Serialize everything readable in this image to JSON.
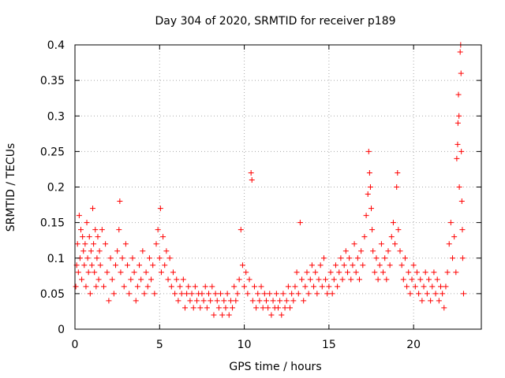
{
  "chart_data": {
    "type": "scatter",
    "title": "Day 304 of 2020, SRMTID for receiver p189",
    "xlabel": "GPS time / hours",
    "ylabel": "SRMTID / TECUs",
    "xlim": [
      0,
      24
    ],
    "ylim": [
      0,
      0.4
    ],
    "x_ticks": [
      0,
      5,
      10,
      15,
      20
    ],
    "x_tick_labels": [
      "0",
      "5",
      "10",
      "15",
      "20"
    ],
    "y_ticks": [
      0,
      0.05,
      0.1,
      0.15,
      0.2,
      0.25,
      0.3,
      0.35,
      0.4
    ],
    "y_tick_labels": [
      "0",
      "0.05",
      "0.1",
      "0.15",
      "0.2",
      "0.25",
      "0.3",
      "0.35",
      "0.4"
    ],
    "grid": true,
    "marker": "plus",
    "color": "#ff0000",
    "series": [
      {
        "name": "SRMTID",
        "points": [
          [
            0.05,
            0.06
          ],
          [
            0.1,
            0.09
          ],
          [
            0.15,
            0.12
          ],
          [
            0.2,
            0.08
          ],
          [
            0.25,
            0.16
          ],
          [
            0.3,
            0.1
          ],
          [
            0.35,
            0.14
          ],
          [
            0.4,
            0.07
          ],
          [
            0.45,
            0.13
          ],
          [
            0.5,
            0.11
          ],
          [
            0.55,
            0.09
          ],
          [
            0.6,
            0.12
          ],
          [
            0.65,
            0.06
          ],
          [
            0.7,
            0.15
          ],
          [
            0.75,
            0.1
          ],
          [
            0.8,
            0.08
          ],
          [
            0.85,
            0.13
          ],
          [
            0.9,
            0.05
          ],
          [
            0.95,
            0.11
          ],
          [
            1.0,
            0.09
          ],
          [
            1.05,
            0.17
          ],
          [
            1.1,
            0.12
          ],
          [
            1.15,
            0.08
          ],
          [
            1.2,
            0.14
          ],
          [
            1.25,
            0.06
          ],
          [
            1.3,
            0.1
          ],
          [
            1.35,
            0.13
          ],
          [
            1.4,
            0.07
          ],
          [
            1.45,
            0.11
          ],
          [
            1.5,
            0.09
          ],
          [
            1.6,
            0.14
          ],
          [
            1.7,
            0.06
          ],
          [
            1.8,
            0.12
          ],
          [
            1.9,
            0.08
          ],
          [
            2.0,
            0.04
          ],
          [
            2.1,
            0.1
          ],
          [
            2.2,
            0.07
          ],
          [
            2.3,
            0.05
          ],
          [
            2.4,
            0.09
          ],
          [
            2.5,
            0.11
          ],
          [
            2.6,
            0.14
          ],
          [
            2.65,
            0.18
          ],
          [
            2.7,
            0.08
          ],
          [
            2.8,
            0.1
          ],
          [
            2.9,
            0.06
          ],
          [
            3.0,
            0.12
          ],
          [
            3.1,
            0.09
          ],
          [
            3.2,
            0.05
          ],
          [
            3.3,
            0.07
          ],
          [
            3.4,
            0.1
          ],
          [
            3.5,
            0.08
          ],
          [
            3.6,
            0.04
          ],
          [
            3.7,
            0.06
          ],
          [
            3.8,
            0.09
          ],
          [
            3.9,
            0.07
          ],
          [
            4.0,
            0.11
          ],
          [
            4.1,
            0.05
          ],
          [
            4.2,
            0.08
          ],
          [
            4.3,
            0.06
          ],
          [
            4.4,
            0.1
          ],
          [
            4.5,
            0.07
          ],
          [
            4.6,
            0.09
          ],
          [
            4.7,
            0.05
          ],
          [
            4.8,
            0.12
          ],
          [
            4.9,
            0.14
          ],
          [
            5.0,
            0.1
          ],
          [
            5.05,
            0.17
          ],
          [
            5.1,
            0.08
          ],
          [
            5.2,
            0.13
          ],
          [
            5.3,
            0.09
          ],
          [
            5.4,
            0.11
          ],
          [
            5.5,
            0.07
          ],
          [
            5.6,
            0.1
          ],
          [
            5.7,
            0.06
          ],
          [
            5.8,
            0.08
          ],
          [
            5.9,
            0.05
          ],
          [
            6.0,
            0.07
          ],
          [
            6.1,
            0.04
          ],
          [
            6.2,
            0.06
          ],
          [
            6.3,
            0.05
          ],
          [
            6.4,
            0.07
          ],
          [
            6.5,
            0.03
          ],
          [
            6.6,
            0.05
          ],
          [
            6.7,
            0.06
          ],
          [
            6.8,
            0.04
          ],
          [
            6.9,
            0.05
          ],
          [
            7.0,
            0.03
          ],
          [
            7.1,
            0.06
          ],
          [
            7.2,
            0.04
          ],
          [
            7.3,
            0.05
          ],
          [
            7.4,
            0.03
          ],
          [
            7.5,
            0.05
          ],
          [
            7.6,
            0.04
          ],
          [
            7.7,
            0.06
          ],
          [
            7.8,
            0.03
          ],
          [
            7.9,
            0.05
          ],
          [
            8.0,
            0.04
          ],
          [
            8.1,
            0.06
          ],
          [
            8.2,
            0.02
          ],
          [
            8.3,
            0.05
          ],
          [
            8.4,
            0.04
          ],
          [
            8.5,
            0.03
          ],
          [
            8.6,
            0.05
          ],
          [
            8.7,
            0.02
          ],
          [
            8.8,
            0.04
          ],
          [
            8.9,
            0.03
          ],
          [
            9.0,
            0.05
          ],
          [
            9.1,
            0.02
          ],
          [
            9.2,
            0.04
          ],
          [
            9.3,
            0.03
          ],
          [
            9.4,
            0.06
          ],
          [
            9.5,
            0.04
          ],
          [
            9.6,
            0.05
          ],
          [
            9.7,
            0.07
          ],
          [
            9.8,
            0.14
          ],
          [
            9.9,
            0.09
          ],
          [
            10.0,
            0.06
          ],
          [
            10.1,
            0.08
          ],
          [
            10.2,
            0.05
          ],
          [
            10.3,
            0.07
          ],
          [
            10.4,
            0.22
          ],
          [
            10.45,
            0.21
          ],
          [
            10.5,
            0.04
          ],
          [
            10.6,
            0.06
          ],
          [
            10.7,
            0.03
          ],
          [
            10.8,
            0.05
          ],
          [
            10.9,
            0.04
          ],
          [
            11.0,
            0.06
          ],
          [
            11.1,
            0.03
          ],
          [
            11.2,
            0.05
          ],
          [
            11.3,
            0.04
          ],
          [
            11.4,
            0.03
          ],
          [
            11.5,
            0.05
          ],
          [
            11.6,
            0.02
          ],
          [
            11.7,
            0.04
          ],
          [
            11.8,
            0.03
          ],
          [
            11.9,
            0.05
          ],
          [
            12.0,
            0.03
          ],
          [
            12.1,
            0.04
          ],
          [
            12.2,
            0.02
          ],
          [
            12.3,
            0.05
          ],
          [
            12.4,
            0.03
          ],
          [
            12.5,
            0.04
          ],
          [
            12.6,
            0.06
          ],
          [
            12.7,
            0.03
          ],
          [
            12.8,
            0.05
          ],
          [
            12.9,
            0.04
          ],
          [
            13.0,
            0.06
          ],
          [
            13.1,
            0.08
          ],
          [
            13.2,
            0.05
          ],
          [
            13.3,
            0.15
          ],
          [
            13.4,
            0.07
          ],
          [
            13.5,
            0.04
          ],
          [
            13.6,
            0.06
          ],
          [
            13.7,
            0.08
          ],
          [
            13.8,
            0.05
          ],
          [
            13.9,
            0.07
          ],
          [
            14.0,
            0.09
          ],
          [
            14.1,
            0.06
          ],
          [
            14.2,
            0.08
          ],
          [
            14.3,
            0.05
          ],
          [
            14.4,
            0.07
          ],
          [
            14.5,
            0.09
          ],
          [
            14.6,
            0.06
          ],
          [
            14.7,
            0.1
          ],
          [
            14.8,
            0.07
          ],
          [
            14.9,
            0.05
          ],
          [
            15.0,
            0.06
          ],
          [
            15.1,
            0.08
          ],
          [
            15.2,
            0.05
          ],
          [
            15.3,
            0.07
          ],
          [
            15.4,
            0.09
          ],
          [
            15.5,
            0.06
          ],
          [
            15.6,
            0.08
          ],
          [
            15.7,
            0.1
          ],
          [
            15.8,
            0.07
          ],
          [
            15.9,
            0.09
          ],
          [
            16.0,
            0.11
          ],
          [
            16.1,
            0.08
          ],
          [
            16.2,
            0.1
          ],
          [
            16.3,
            0.07
          ],
          [
            16.4,
            0.09
          ],
          [
            16.5,
            0.12
          ],
          [
            16.6,
            0.08
          ],
          [
            16.7,
            0.1
          ],
          [
            16.8,
            0.07
          ],
          [
            16.9,
            0.11
          ],
          [
            17.0,
            0.09
          ],
          [
            17.1,
            0.13
          ],
          [
            17.2,
            0.16
          ],
          [
            17.3,
            0.19
          ],
          [
            17.35,
            0.25
          ],
          [
            17.4,
            0.22
          ],
          [
            17.45,
            0.2
          ],
          [
            17.5,
            0.17
          ],
          [
            17.55,
            0.14
          ],
          [
            17.6,
            0.11
          ],
          [
            17.7,
            0.08
          ],
          [
            17.8,
            0.1
          ],
          [
            17.9,
            0.07
          ],
          [
            18.0,
            0.09
          ],
          [
            18.1,
            0.12
          ],
          [
            18.2,
            0.08
          ],
          [
            18.3,
            0.1
          ],
          [
            18.4,
            0.07
          ],
          [
            18.5,
            0.11
          ],
          [
            18.6,
            0.09
          ],
          [
            18.7,
            0.13
          ],
          [
            18.8,
            0.15
          ],
          [
            18.9,
            0.12
          ],
          [
            19.0,
            0.2
          ],
          [
            19.05,
            0.22
          ],
          [
            19.1,
            0.14
          ],
          [
            19.2,
            0.11
          ],
          [
            19.3,
            0.09
          ],
          [
            19.4,
            0.07
          ],
          [
            19.5,
            0.1
          ],
          [
            19.6,
            0.06
          ],
          [
            19.7,
            0.08
          ],
          [
            19.8,
            0.05
          ],
          [
            19.9,
            0.07
          ],
          [
            20.0,
            0.09
          ],
          [
            20.1,
            0.06
          ],
          [
            20.2,
            0.08
          ],
          [
            20.3,
            0.05
          ],
          [
            20.4,
            0.07
          ],
          [
            20.5,
            0.04
          ],
          [
            20.6,
            0.06
          ],
          [
            20.7,
            0.08
          ],
          [
            20.8,
            0.05
          ],
          [
            20.9,
            0.07
          ],
          [
            21.0,
            0.04
          ],
          [
            21.1,
            0.06
          ],
          [
            21.2,
            0.08
          ],
          [
            21.3,
            0.05
          ],
          [
            21.4,
            0.07
          ],
          [
            21.5,
            0.04
          ],
          [
            21.6,
            0.06
          ],
          [
            21.7,
            0.05
          ],
          [
            21.8,
            0.03
          ],
          [
            21.9,
            0.06
          ],
          [
            22.0,
            0.08
          ],
          [
            22.1,
            0.12
          ],
          [
            22.2,
            0.15
          ],
          [
            22.3,
            0.1
          ],
          [
            22.4,
            0.13
          ],
          [
            22.5,
            0.08
          ],
          [
            22.55,
            0.24
          ],
          [
            22.6,
            0.26
          ],
          [
            22.62,
            0.29
          ],
          [
            22.65,
            0.33
          ],
          [
            22.68,
            0.3
          ],
          [
            22.7,
            0.2
          ],
          [
            22.75,
            0.39
          ],
          [
            22.78,
            0.4
          ],
          [
            22.8,
            0.36
          ],
          [
            22.82,
            0.25
          ],
          [
            22.85,
            0.18
          ],
          [
            22.88,
            0.14
          ],
          [
            22.9,
            0.1
          ],
          [
            22.95,
            0.05
          ]
        ]
      }
    ]
  }
}
